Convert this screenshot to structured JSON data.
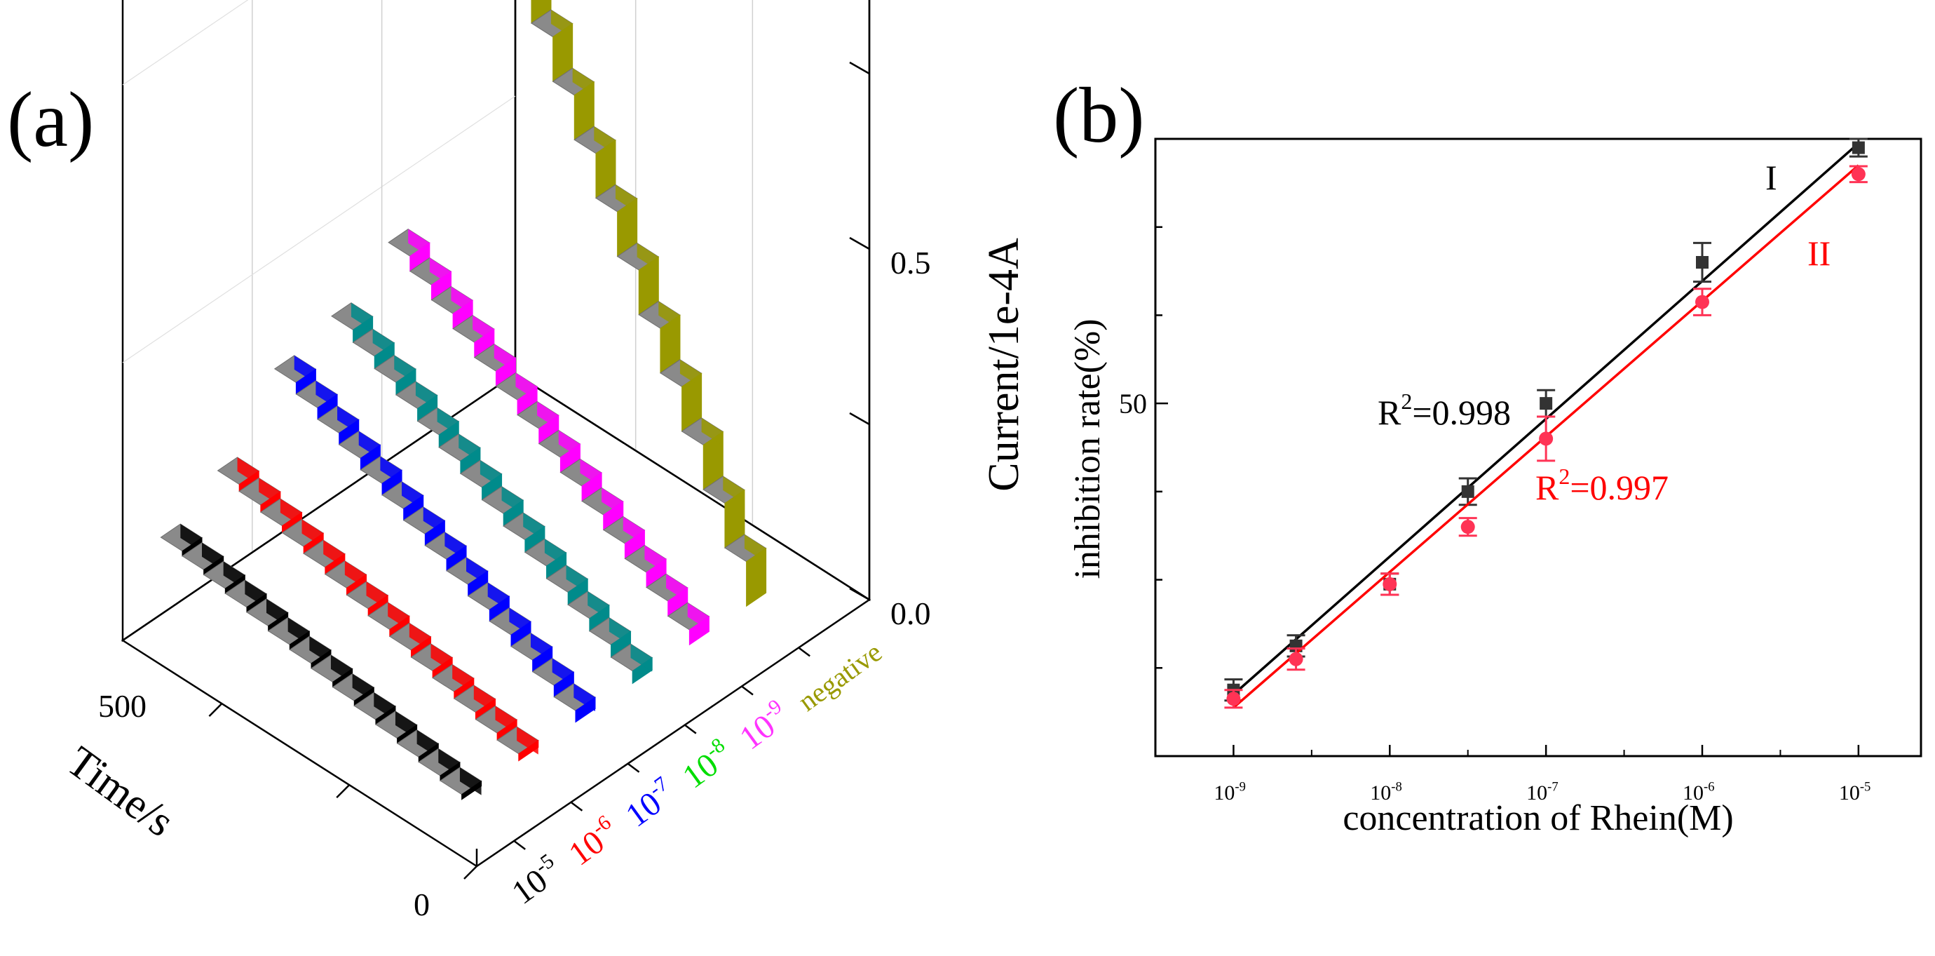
{
  "panel_a": {
    "panel_label": "(a)",
    "chart_data": {
      "type": "3d-waterfall",
      "title": "",
      "xlabel": "Time/s",
      "zlabel": "Current/1e-4A",
      "x_ticks": [
        "0",
        "500"
      ],
      "z_ticks": [
        "0.0",
        "0.5"
      ],
      "series_axis_labels": [
        {
          "base": "10",
          "exp": "-5",
          "color": "#000000"
        },
        {
          "base": "10",
          "exp": "-6",
          "color": "#ff0000"
        },
        {
          "base": "10",
          "exp": "-7",
          "color": "#0000ff"
        },
        {
          "base": "10",
          "exp": "-8",
          "color": "#00dd00"
        },
        {
          "base": "10",
          "exp": "-9",
          "color": "#ff33ff"
        },
        {
          "base": "negative",
          "exp": "",
          "color": "#999900"
        }
      ],
      "series": [
        {
          "name": "10^-5",
          "color": "#000000",
          "start": 0.13,
          "end": 0.03
        },
        {
          "name": "10^-6",
          "color": "#ff0000",
          "start": 0.17,
          "end": 0.03
        },
        {
          "name": "10^-7",
          "color": "#0000ff",
          "start": 0.26,
          "end": 0.03
        },
        {
          "name": "10^-8",
          "color": "#008b8b",
          "start": 0.28,
          "end": 0.03
        },
        {
          "name": "10^-9",
          "color": "#ff00ff",
          "start": 0.33,
          "end": 0.03
        },
        {
          "name": "negative",
          "color": "#999900",
          "start": 0.92,
          "end": 0.03
        }
      ],
      "steps": 14,
      "xlim": [
        0,
        700
      ],
      "zlim": [
        0,
        0.9
      ]
    }
  },
  "panel_b": {
    "panel_label": "(b)",
    "chart_data": {
      "type": "scatter",
      "title": "",
      "xlabel": "concentration of Rhein(M)",
      "ylabel": "inhibition rate(%)",
      "x_scale": "log",
      "x_ticks": [
        {
          "base": "10",
          "exp": "-9",
          "value": -9
        },
        {
          "base": "10",
          "exp": "-8",
          "value": -8
        },
        {
          "base": "10",
          "exp": "-7",
          "value": -7
        },
        {
          "base": "10",
          "exp": "-6",
          "value": -6
        },
        {
          "base": "10",
          "exp": "-5",
          "value": -5
        }
      ],
      "y_ticks": [
        {
          "label": "50",
          "value": 50
        }
      ],
      "xlim": [
        -9.5,
        -4.6
      ],
      "ylim": [
        10,
        80
      ],
      "series": [
        {
          "name": "I",
          "color": "#333333",
          "line_color": "#000000",
          "marker": "square",
          "r2_base": "R",
          "r2_exp": "2",
          "r2_value": "=0.998",
          "x": [
            -9,
            -8.6,
            -8,
            -7.5,
            -7,
            -6,
            -5
          ],
          "y": [
            17.5,
            22.5,
            29.5,
            40,
            50,
            66,
            79
          ],
          "err": [
            1.2,
            1.2,
            1.2,
            1.5,
            1.5,
            2.2,
            1.0
          ],
          "fit": [
            [
              -9,
              17
            ],
            [
              -5,
              79.5
            ]
          ]
        },
        {
          "name": "II",
          "color": "#ff3355",
          "line_color": "#ff0000",
          "marker": "circle",
          "r2_base": "R",
          "r2_exp": "2",
          "r2_value": "=0.997",
          "x": [
            -9,
            -8.6,
            -8,
            -7.5,
            -7,
            -6,
            -5
          ],
          "y": [
            16.5,
            21,
            29.5,
            36,
            46,
            61.5,
            76
          ],
          "err": [
            1.0,
            1.2,
            1.2,
            1.0,
            2.5,
            1.5,
            0.9
          ],
          "fit": [
            [
              -9,
              15.5
            ],
            [
              -5,
              77
            ]
          ]
        }
      ]
    }
  }
}
